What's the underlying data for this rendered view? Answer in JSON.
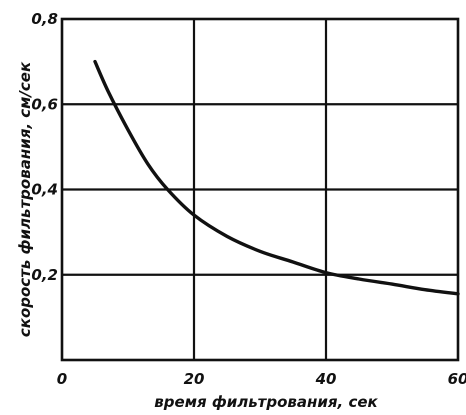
{
  "chart_data": {
    "type": "line",
    "xlabel": "время фильтрования, сек",
    "ylabel": "скорость фильтрования, см/сек",
    "xlim": [
      0,
      60
    ],
    "ylim": [
      0,
      0.8
    ],
    "grid": true,
    "x_ticks": [
      0,
      20,
      40,
      60
    ],
    "x_tick_labels": [
      "0",
      "20",
      "40",
      "60"
    ],
    "y_ticks": [
      0.2,
      0.4,
      0.6,
      0.8
    ],
    "y_tick_labels": [
      "0,2",
      "0,4",
      "0,6",
      "0,8"
    ],
    "series": [
      {
        "x": [
          5,
          7,
          10,
          13,
          16,
          20,
          25,
          30,
          35,
          40,
          45,
          50,
          55,
          60
        ],
        "y": [
          0.7,
          0.63,
          0.54,
          0.46,
          0.4,
          0.34,
          0.29,
          0.255,
          0.23,
          0.205,
          0.19,
          0.178,
          0.165,
          0.155
        ]
      }
    ]
  }
}
